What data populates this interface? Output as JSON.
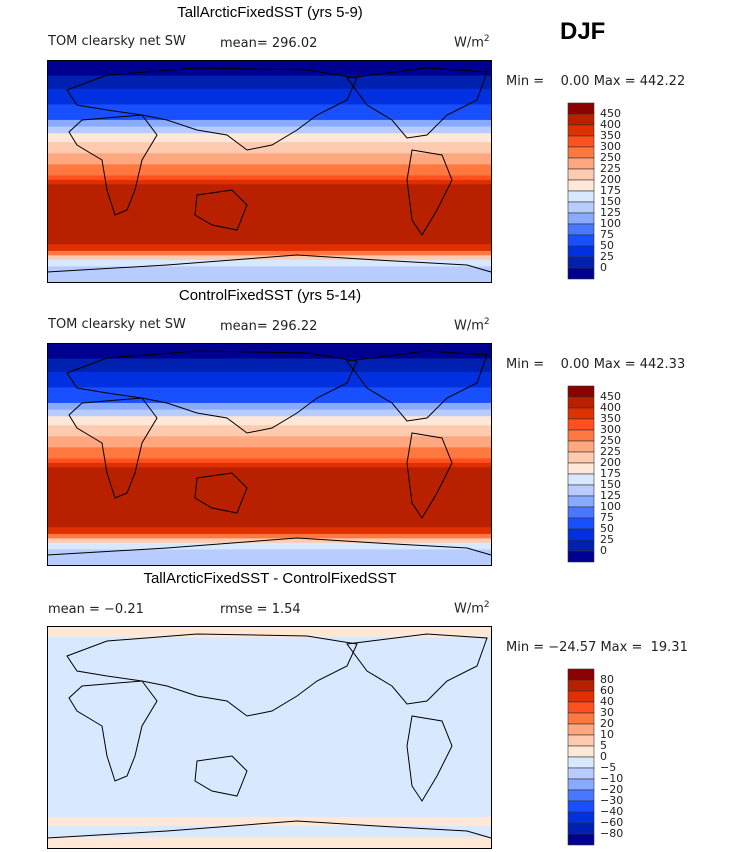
{
  "season": "DJF",
  "chart_data": [
    {
      "type": "heatmap",
      "title": "TallArcticFixedSST (yrs 5-9)",
      "variable": "TOM clearsky net SW",
      "mean_label": "mean= 296.02",
      "units": "W/m",
      "units_sup": "2",
      "minmax_label": "Min =    0.00 Max = 442.22",
      "min": 0.0,
      "max": 442.22,
      "levels": [
        "450",
        "400",
        "350",
        "300",
        "250",
        "225",
        "200",
        "175",
        "150",
        "125",
        "100",
        "75",
        "50",
        "25",
        "0"
      ]
    },
    {
      "type": "heatmap",
      "title": "ControlFixedSST (yrs 5-14)",
      "variable": "TOM clearsky net SW",
      "mean_label": "mean= 296.22",
      "units": "W/m",
      "units_sup": "2",
      "minmax_label": "Min =    0.00 Max = 442.33",
      "min": 0.0,
      "max": 442.33,
      "levels": [
        "450",
        "400",
        "350",
        "300",
        "250",
        "225",
        "200",
        "175",
        "150",
        "125",
        "100",
        "75",
        "50",
        "25",
        "0"
      ]
    },
    {
      "type": "heatmap",
      "title": "TallArcticFixedSST - ControlFixedSST",
      "mean_label": "mean =  −0.21",
      "rmse_label": "rmse =    1.54",
      "units": "W/m",
      "units_sup": "2",
      "minmax_label": "Min = −24.57 Max =  19.31",
      "min": -24.57,
      "max": 19.31,
      "mean": -0.21,
      "rmse": 1.54,
      "levels": [
        "80",
        "60",
        "40",
        "30",
        "20",
        "10",
        "5",
        "0",
        "−5",
        "−10",
        "−20",
        "−30",
        "−40",
        "−60",
        "−80"
      ]
    }
  ],
  "colors": [
    "#8b0000",
    "#b82000",
    "#e03000",
    "#ff5020",
    "#ff7840",
    "#ffa880",
    "#ffcbb0",
    "#ffe8d8",
    "#d8e8ff",
    "#b8ccff",
    "#88aaff",
    "#4878ff",
    "#1850ff",
    "#0030e0",
    "#0020b0",
    "#000090"
  ]
}
